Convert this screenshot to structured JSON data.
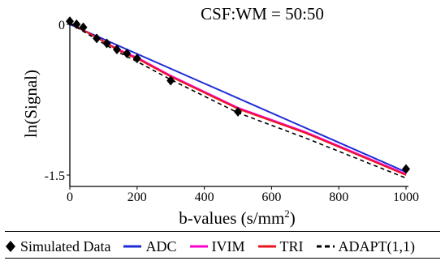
{
  "chart_data": {
    "type": "line",
    "title": "CSF:WM = 50:50",
    "xlabel": "b-values (s/mm",
    "xlabel_sup": "2",
    "xlabel_tail": ")",
    "ylabel": "ln(Signal)",
    "xlim": [
      0,
      1000
    ],
    "ylim": [
      -1.5,
      0
    ],
    "x_ticks": [
      "0",
      "200",
      "400",
      "600",
      "800",
      "1000"
    ],
    "x_tick_values": [
      0,
      200,
      400,
      600,
      800,
      1000
    ],
    "y_ticks": [
      "0",
      "-1.5"
    ],
    "y_tick_values": [
      0,
      -1.5
    ],
    "grid": false,
    "legend_position": "bottom",
    "series": [
      {
        "name": "Simulated Data",
        "style": "diamond-markers",
        "color": "#000000",
        "x": [
          0,
          20,
          40,
          80,
          110,
          140,
          170,
          200,
          300,
          500,
          1000
        ],
        "y": [
          0.03,
          0.0,
          -0.03,
          -0.14,
          -0.19,
          -0.25,
          -0.29,
          -0.34,
          -0.56,
          -0.87,
          -1.44
        ]
      },
      {
        "name": "ADC",
        "style": "line",
        "color": "#1f2bd6",
        "x": [
          0,
          1000
        ],
        "y": [
          0.0,
          -1.47
        ]
      },
      {
        "name": "IVIM",
        "style": "line",
        "color": "#ff00cc",
        "x": [
          0,
          20,
          40,
          80,
          110,
          140,
          170,
          200,
          300,
          500,
          700,
          1000
        ],
        "y": [
          0.01,
          -0.02,
          -0.06,
          -0.13,
          -0.19,
          -0.24,
          -0.29,
          -0.33,
          -0.51,
          -0.83,
          -1.07,
          -1.49
        ]
      },
      {
        "name": "TRI",
        "style": "line",
        "color": "#e8161b",
        "x": [
          0,
          20,
          40,
          80,
          110,
          140,
          170,
          200,
          300,
          500,
          700,
          1000
        ],
        "y": [
          0.01,
          -0.02,
          -0.06,
          -0.13,
          -0.19,
          -0.25,
          -0.3,
          -0.34,
          -0.52,
          -0.84,
          -1.08,
          -1.5
        ]
      },
      {
        "name": "ADAPT(1,1)",
        "style": "dashed",
        "color": "#000000",
        "x": [
          0,
          20,
          40,
          80,
          110,
          140,
          170,
          200,
          300,
          500,
          700,
          1000
        ],
        "y": [
          0.01,
          -0.03,
          -0.07,
          -0.15,
          -0.21,
          -0.27,
          -0.32,
          -0.37,
          -0.55,
          -0.88,
          -1.13,
          -1.53
        ]
      }
    ]
  }
}
